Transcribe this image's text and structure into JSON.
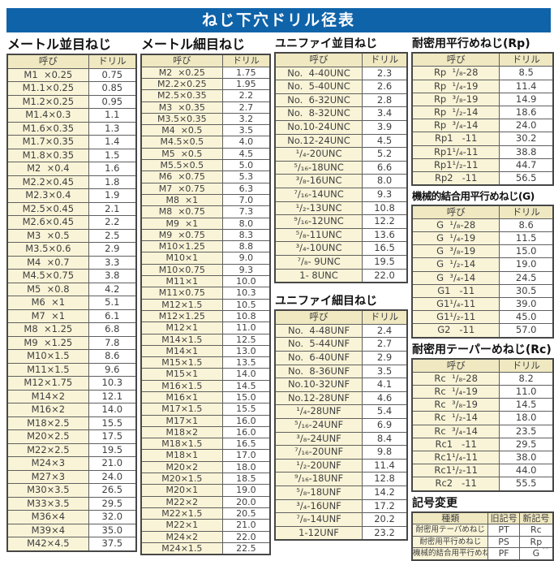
{
  "title": "ねじ下穴ドリル径表",
  "corner_mark": "--",
  "colors": {
    "title_bg": "#0f63a9",
    "header_cell": "#efe8c1",
    "name_cell": "#f9f4d7",
    "value_cell": "#ffffff",
    "border": "#474747",
    "text": "#3f3f3f"
  },
  "sections": {
    "metric_coarse": {
      "heading": "メートル並目ねじ",
      "headers": [
        "呼び",
        "ドリル"
      ],
      "rows": [
        [
          "M1  ×0.25",
          "0.75"
        ],
        [
          "M1.1×0.25",
          "0.85"
        ],
        [
          "M1.2×0.25",
          "0.95"
        ],
        [
          "M1.4×0.3",
          "1.1"
        ],
        [
          "M1.6×0.35",
          "1.3"
        ],
        [
          "M1.7×0.35",
          "1.4"
        ],
        [
          "M1.8×0.35",
          "1.5"
        ],
        [
          "M2  ×0.4",
          "1.6"
        ],
        [
          "M2.2×0.45",
          "1.8"
        ],
        [
          "M2.3×0.4",
          "1.9"
        ],
        [
          "M2.5×0.45",
          "2.1"
        ],
        [
          "M2.6×0.45",
          "2.2"
        ],
        [
          "M3  ×0.5",
          "2.5"
        ],
        [
          "M3.5×0.6",
          "2.9"
        ],
        [
          "M4  ×0.7",
          "3.3"
        ],
        [
          "M4.5×0.75",
          "3.8"
        ],
        [
          "M5  ×0.8",
          "4.2"
        ],
        [
          "M6  ×1",
          "5.1"
        ],
        [
          "M7  ×1",
          "6.1"
        ],
        [
          "M8  ×1.25",
          "6.8"
        ],
        [
          "M9  ×1.25",
          "7.8"
        ],
        [
          "M10×1.5",
          "8.6"
        ],
        [
          "M11×1.5",
          "9.6"
        ],
        [
          "M12×1.75",
          "10.3"
        ],
        [
          "M14×2",
          "12.1"
        ],
        [
          "M16×2",
          "14.0"
        ],
        [
          "M18×2.5",
          "15.5"
        ],
        [
          "M20×2.5",
          "17.5"
        ],
        [
          "M22×2.5",
          "19.5"
        ],
        [
          "M24×3",
          "21.0"
        ],
        [
          "M27×3",
          "24.0"
        ],
        [
          "M30×3.5",
          "26.5"
        ],
        [
          "M33×3.5",
          "29.5"
        ],
        [
          "M36×4",
          "32.0"
        ],
        [
          "M39×4",
          "35.0"
        ],
        [
          "M42×4.5",
          "37.5"
        ]
      ]
    },
    "metric_fine": {
      "heading": "メートル細目ねじ",
      "headers": [
        "呼び",
        "ドリル"
      ],
      "rows": [
        [
          "M2  ×0.25",
          "1.75"
        ],
        [
          "M2.2×0.25",
          "1.95"
        ],
        [
          "M2.5×0.35",
          "2.2"
        ],
        [
          "M3  ×0.35",
          "2.7"
        ],
        [
          "M3.5×0.35",
          "3.2"
        ],
        [
          "M4  ×0.5",
          "3.5"
        ],
        [
          "M4.5×0.5",
          "4.0"
        ],
        [
          "M5  ×0.5",
          "4.5"
        ],
        [
          "M5.5×0.5",
          "5.0"
        ],
        [
          "M6  ×0.75",
          "5.3"
        ],
        [
          "M7  ×0.75",
          "6.3"
        ],
        [
          "M8  ×1",
          "7.0"
        ],
        [
          "M8  ×0.75",
          "7.3"
        ],
        [
          "M9  ×1",
          "8.0"
        ],
        [
          "M9  ×0.75",
          "8.3"
        ],
        [
          "M10×1.25",
          "8.8"
        ],
        [
          "M10×1",
          "9.0"
        ],
        [
          "M10×0.75",
          "9.3"
        ],
        [
          "M11×1",
          "10.0"
        ],
        [
          "M11×0.75",
          "10.3"
        ],
        [
          "M12×1.5",
          "10.5"
        ],
        [
          "M12×1.25",
          "10.8"
        ],
        [
          "M12×1",
          "11.0"
        ],
        [
          "M14×1.5",
          "12.5"
        ],
        [
          "M14×1",
          "13.0"
        ],
        [
          "M15×1.5",
          "13.5"
        ],
        [
          "M15×1",
          "14.0"
        ],
        [
          "M16×1.5",
          "14.5"
        ],
        [
          "M16×1",
          "15.0"
        ],
        [
          "M17×1.5",
          "15.5"
        ],
        [
          "M17×1",
          "16.0"
        ],
        [
          "M18×2",
          "16.0"
        ],
        [
          "M18×1.5",
          "16.5"
        ],
        [
          "M18×1",
          "17.0"
        ],
        [
          "M20×2",
          "18.0"
        ],
        [
          "M20×1.5",
          "18.5"
        ],
        [
          "M20×1",
          "19.0"
        ],
        [
          "M22×2",
          "20.0"
        ],
        [
          "M22×1.5",
          "20.5"
        ],
        [
          "M22×1",
          "21.0"
        ],
        [
          "M24×2",
          "22.0"
        ],
        [
          "M24×1.5",
          "22.5"
        ]
      ]
    },
    "unified_coarse": {
      "heading": "ユニファイ並目ねじ",
      "headers": [
        "呼び",
        "ドリル"
      ],
      "rows": [
        [
          "No.  4-40UNC",
          "2.3"
        ],
        [
          "No.  5-40UNC",
          "2.6"
        ],
        [
          "No.  6-32UNC",
          "2.8"
        ],
        [
          "No.  8-32UNC",
          "3.4"
        ],
        [
          "No.10-24UNC",
          "3.9"
        ],
        [
          "No.12-24UNC",
          "4.5"
        ],
        [
          "¹/₄-20UNC",
          "5.2"
        ],
        [
          "⁵/₁₆-18UNC",
          "6.6"
        ],
        [
          "³/₈-16UNC",
          "8.0"
        ],
        [
          "⁷/₁₆-14UNC",
          "9.3"
        ],
        [
          "¹/₂-13UNC",
          "10.8"
        ],
        [
          "⁹/₁₆-12UNC",
          "12.2"
        ],
        [
          "⁵/₈-11UNC",
          "13.6"
        ],
        [
          "³/₄-10UNC",
          "16.5"
        ],
        [
          "⁷/₈- 9UNC",
          "19.5"
        ],
        [
          "1- 8UNC",
          "22.0"
        ]
      ]
    },
    "unified_fine": {
      "heading": "ユニファイ細目ねじ",
      "headers": [
        "呼び",
        "ドリル"
      ],
      "rows": [
        [
          "No.  4-48UNF",
          "2.4"
        ],
        [
          "No.  5-44UNF",
          "2.7"
        ],
        [
          "No.  6-40UNF",
          "2.9"
        ],
        [
          "No.  8-36UNF",
          "3.5"
        ],
        [
          "No.10-32UNF",
          "4.1"
        ],
        [
          "No.12-28UNF",
          "4.6"
        ],
        [
          "¹/₄-28UNF",
          "5.4"
        ],
        [
          "⁵/₁₆-24UNF",
          "6.9"
        ],
        [
          "³/₈-24UNF",
          "8.4"
        ],
        [
          "⁷/₁₆-20UNF",
          "9.8"
        ],
        [
          "¹/₂-20UNF",
          "11.4"
        ],
        [
          "⁹/₁₆-18UNF",
          "12.8"
        ],
        [
          "⁵/₈-18UNF",
          "14.2"
        ],
        [
          "³/₄-16UNF",
          "17.2"
        ],
        [
          "⁷/₈-14UNF",
          "20.2"
        ],
        [
          "1-12UNF",
          "23.2"
        ]
      ]
    },
    "rp": {
      "heading": "耐密用平行めねじ(Rp)",
      "headers": [
        "呼び",
        "ドリル"
      ],
      "rows": [
        [
          "Rp  ¹/₈-28",
          "8.5"
        ],
        [
          "Rp  ¹/₄-19",
          "11.4"
        ],
        [
          "Rp  ³/₈-19",
          "14.9"
        ],
        [
          "Rp  ¹/₂-14",
          "18.6"
        ],
        [
          "Rp  ³/₄-14",
          "24.0"
        ],
        [
          "Rp1   -11",
          "30.2"
        ],
        [
          "Rp1¹/₄-11",
          "38.8"
        ],
        [
          "Rp1¹/₂-11",
          "44.7"
        ],
        [
          "Rp2   -11",
          "56.5"
        ]
      ]
    },
    "g": {
      "heading": "機械的結合用平行めねじ(G)",
      "headers": [
        "呼び",
        "ドリル"
      ],
      "rows": [
        [
          "G  ¹/₈-28",
          "8.6"
        ],
        [
          "G  ¹/₄-19",
          "11.5"
        ],
        [
          "G  ³/₈-19",
          "15.0"
        ],
        [
          "G  ¹/₂-14",
          "19.0"
        ],
        [
          "G  ³/₄-14",
          "24.5"
        ],
        [
          "G1   -11",
          "30.5"
        ],
        [
          "G1¹/₄-11",
          "39.0"
        ],
        [
          "G1¹/₂-11",
          "45.0"
        ],
        [
          "G2   -11",
          "57.0"
        ]
      ]
    },
    "rc": {
      "heading": "耐密用テーパーめねじ(Rc)",
      "headers": [
        "呼び",
        "ドリル"
      ],
      "rows": [
        [
          "Rc  ¹/₈-28",
          "8.2"
        ],
        [
          "Rc  ¹/₄-19",
          "11.0"
        ],
        [
          "Rc  ³/₈-19",
          "14.5"
        ],
        [
          "Rc  ¹/₂-14",
          "18.0"
        ],
        [
          "Rc  ³/₄-14",
          "23.5"
        ],
        [
          "Rc1   -11",
          "29.5"
        ],
        [
          "Rc1¹/₄-11",
          "38.0"
        ],
        [
          "Rc1¹/₂-11",
          "44.0"
        ],
        [
          "Rc2   -11",
          "55.5"
        ]
      ]
    },
    "symbol_change": {
      "heading": "記号変更",
      "headers": [
        "種類",
        "旧記号",
        "新記号"
      ],
      "rows": [
        [
          "耐密用テーパめねじ",
          "PT",
          "Rc"
        ],
        [
          "耐密用平行めねじ",
          "PS",
          "Rp"
        ],
        [
          "機械的結合用平行めねじ",
          "PF",
          "G"
        ]
      ]
    }
  }
}
